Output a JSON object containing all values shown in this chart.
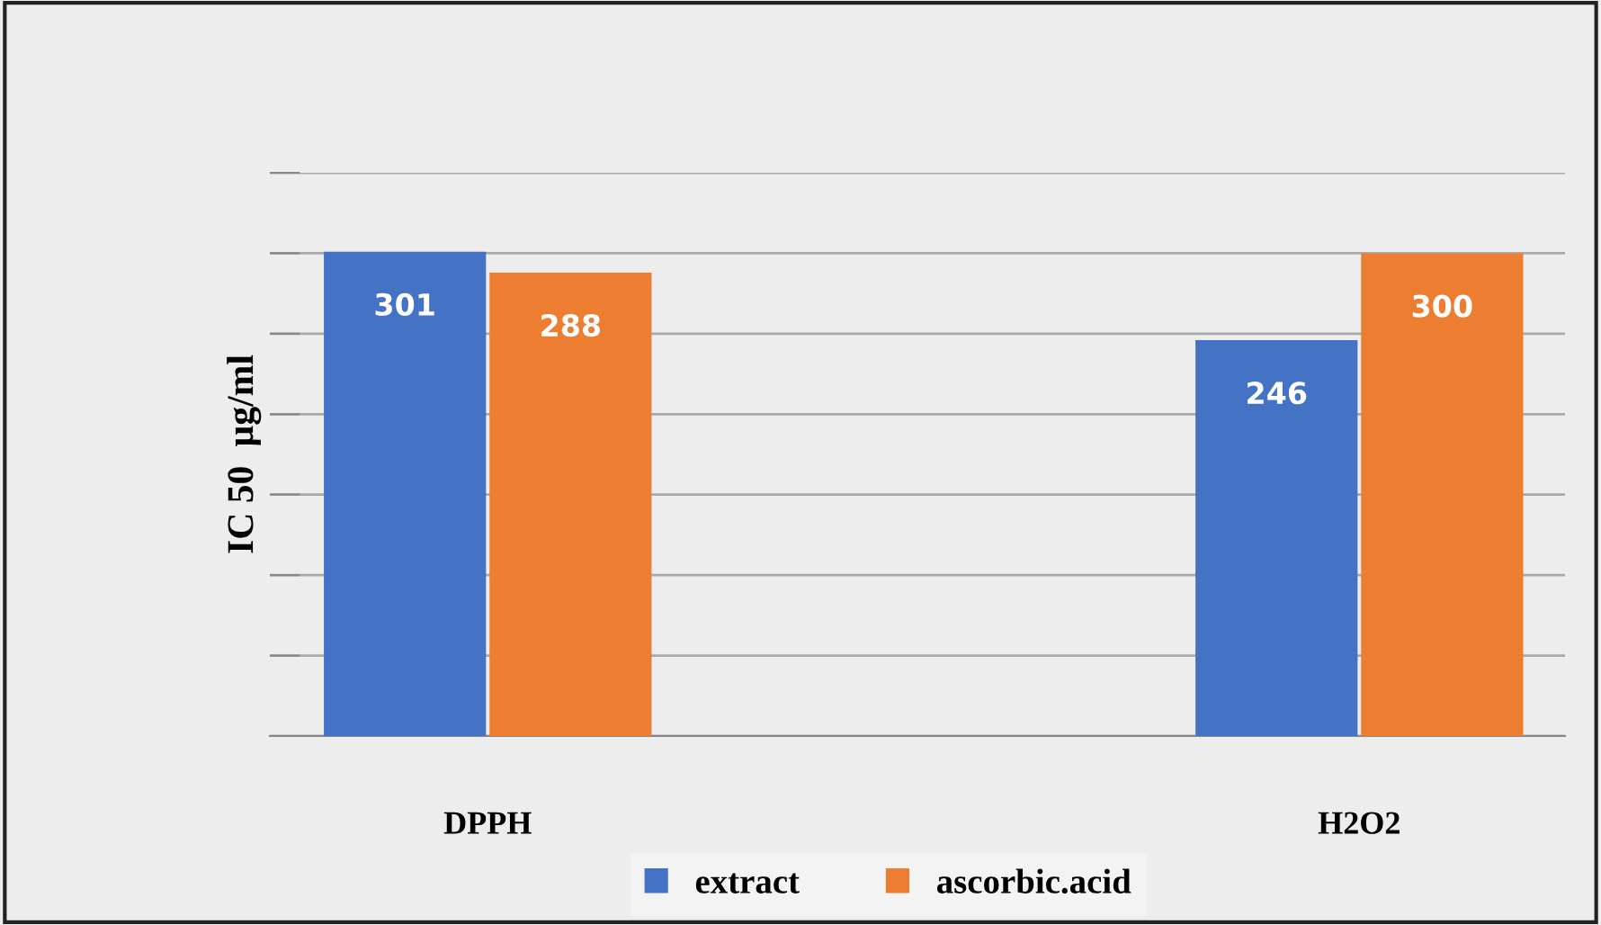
{
  "chart_data": {
    "type": "bar",
    "ylabel": "IC 50  µg/ml",
    "categories": [
      "DPPH",
      "H2O2"
    ],
    "series": [
      {
        "name": "extract",
        "color": "#4472c4",
        "values": [
          301,
          246
        ]
      },
      {
        "name": "ascorbic.acid",
        "color": "#ed7d31",
        "values": [
          288,
          300
        ]
      }
    ],
    "ylim": [
      0,
      350
    ],
    "yticks": [
      {
        "value": 0,
        "label": null
      },
      {
        "value": 50,
        "label": null
      },
      {
        "value": 100,
        "label": null
      },
      {
        "value": 150,
        "label": null
      },
      {
        "value": 200,
        "label": null
      },
      {
        "value": 250,
        "label": null
      },
      {
        "value": 300,
        "label": null
      },
      {
        "value": 350,
        "label": null
      }
    ],
    "grid": "y",
    "legend": "bottom",
    "data_labels": true
  }
}
